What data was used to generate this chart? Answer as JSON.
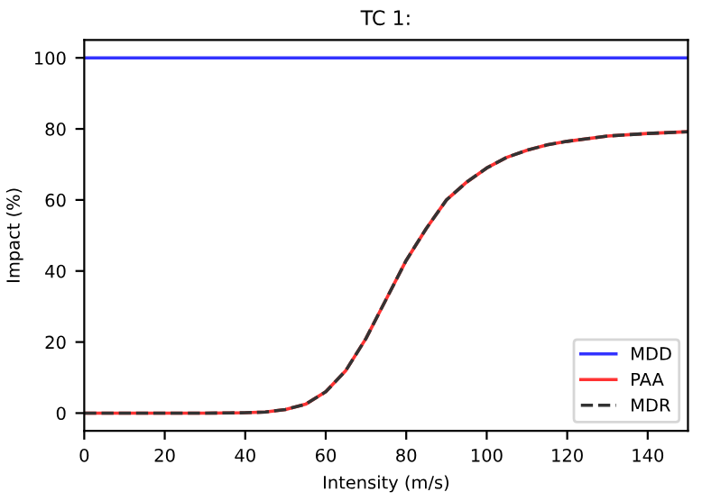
{
  "chart_data": {
    "type": "line",
    "title": "TC 1:",
    "xlabel": "Intensity (m/s)",
    "ylabel": "Impact (%)",
    "x": [
      0,
      10,
      20,
      30,
      40,
      45,
      50,
      55,
      60,
      65,
      70,
      75,
      80,
      85,
      90,
      95,
      100,
      105,
      110,
      115,
      120,
      130,
      140,
      150
    ],
    "series": [
      {
        "name": "MDD",
        "color": "#3333ff",
        "line_style": "solid",
        "values": [
          100,
          100,
          100,
          100,
          100,
          100,
          100,
          100,
          100,
          100,
          100,
          100,
          100,
          100,
          100,
          100,
          100,
          100,
          100,
          100,
          100,
          100,
          100,
          100
        ]
      },
      {
        "name": "PAA",
        "color": "#ff3333",
        "line_style": "solid",
        "values": [
          0,
          0,
          0,
          0,
          0.1,
          0.3,
          1,
          2.5,
          6,
          12,
          21,
          32,
          43,
          52,
          60,
          65,
          69,
          72,
          74,
          75.5,
          76.5,
          78,
          78.7,
          79.2
        ]
      },
      {
        "name": "MDR",
        "color": "#333333",
        "line_style": "dashed",
        "values": [
          0,
          0,
          0,
          0,
          0.1,
          0.3,
          1,
          2.5,
          6,
          12,
          21,
          32,
          43,
          52,
          60,
          65,
          69,
          72,
          74,
          75.5,
          76.5,
          78,
          78.7,
          79.2
        ]
      }
    ],
    "xlim": [
      0,
      150
    ],
    "xticks": [
      0,
      20,
      40,
      60,
      80,
      100,
      120,
      140
    ],
    "ylim": [
      -5,
      105
    ],
    "yticks": [
      0,
      20,
      40,
      60,
      80,
      100
    ],
    "grid": false,
    "legend": "bottom right",
    "marker": "none"
  }
}
